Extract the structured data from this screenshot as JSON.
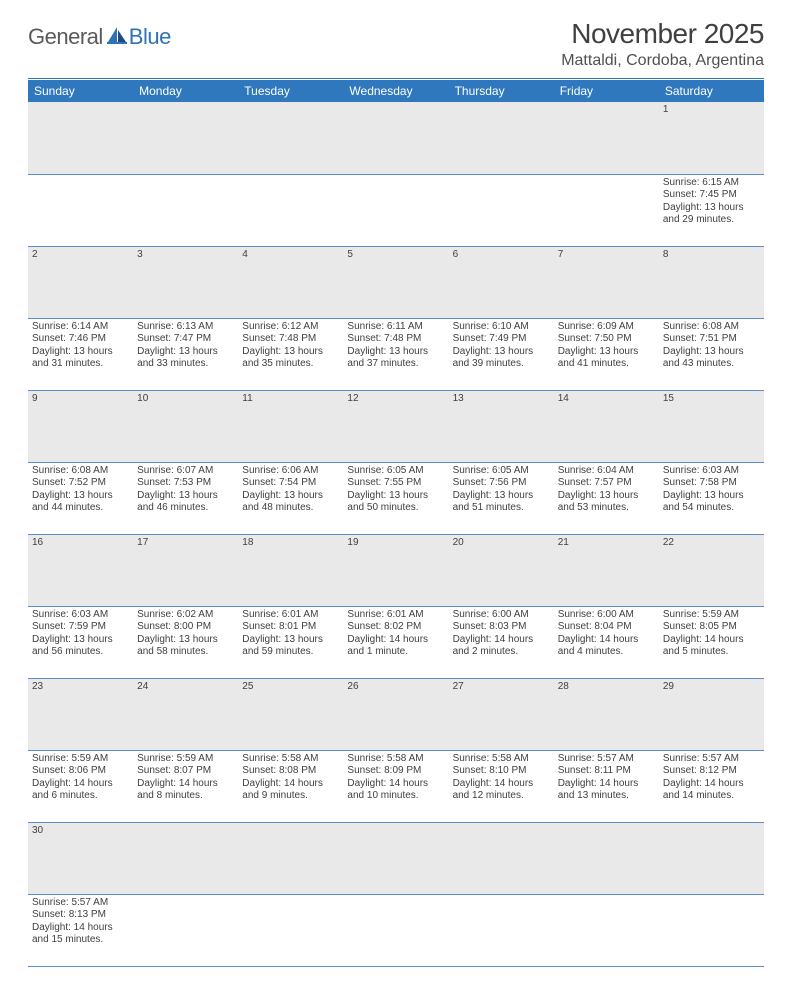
{
  "logo": {
    "part1": "General",
    "part2": "Blue"
  },
  "title": "November 2025",
  "location": "Mattaldi, Cordoba, Argentina",
  "colors": {
    "header_bg": "#2f78bd",
    "rule": "#2f78bd",
    "daynum_bg": "#e9e9e9",
    "cell_border": "#5a8fc6",
    "text": "#404040"
  },
  "weekdays": [
    "Sunday",
    "Monday",
    "Tuesday",
    "Wednesday",
    "Thursday",
    "Friday",
    "Saturday"
  ],
  "weeks": [
    [
      null,
      null,
      null,
      null,
      null,
      null,
      {
        "n": "1",
        "rise": "Sunrise: 6:15 AM",
        "set": "Sunset: 7:45 PM",
        "dl1": "Daylight: 13 hours",
        "dl2": "and 29 minutes."
      }
    ],
    [
      {
        "n": "2",
        "rise": "Sunrise: 6:14 AM",
        "set": "Sunset: 7:46 PM",
        "dl1": "Daylight: 13 hours",
        "dl2": "and 31 minutes."
      },
      {
        "n": "3",
        "rise": "Sunrise: 6:13 AM",
        "set": "Sunset: 7:47 PM",
        "dl1": "Daylight: 13 hours",
        "dl2": "and 33 minutes."
      },
      {
        "n": "4",
        "rise": "Sunrise: 6:12 AM",
        "set": "Sunset: 7:48 PM",
        "dl1": "Daylight: 13 hours",
        "dl2": "and 35 minutes."
      },
      {
        "n": "5",
        "rise": "Sunrise: 6:11 AM",
        "set": "Sunset: 7:48 PM",
        "dl1": "Daylight: 13 hours",
        "dl2": "and 37 minutes."
      },
      {
        "n": "6",
        "rise": "Sunrise: 6:10 AM",
        "set": "Sunset: 7:49 PM",
        "dl1": "Daylight: 13 hours",
        "dl2": "and 39 minutes."
      },
      {
        "n": "7",
        "rise": "Sunrise: 6:09 AM",
        "set": "Sunset: 7:50 PM",
        "dl1": "Daylight: 13 hours",
        "dl2": "and 41 minutes."
      },
      {
        "n": "8",
        "rise": "Sunrise: 6:08 AM",
        "set": "Sunset: 7:51 PM",
        "dl1": "Daylight: 13 hours",
        "dl2": "and 43 minutes."
      }
    ],
    [
      {
        "n": "9",
        "rise": "Sunrise: 6:08 AM",
        "set": "Sunset: 7:52 PM",
        "dl1": "Daylight: 13 hours",
        "dl2": "and 44 minutes."
      },
      {
        "n": "10",
        "rise": "Sunrise: 6:07 AM",
        "set": "Sunset: 7:53 PM",
        "dl1": "Daylight: 13 hours",
        "dl2": "and 46 minutes."
      },
      {
        "n": "11",
        "rise": "Sunrise: 6:06 AM",
        "set": "Sunset: 7:54 PM",
        "dl1": "Daylight: 13 hours",
        "dl2": "and 48 minutes."
      },
      {
        "n": "12",
        "rise": "Sunrise: 6:05 AM",
        "set": "Sunset: 7:55 PM",
        "dl1": "Daylight: 13 hours",
        "dl2": "and 50 minutes."
      },
      {
        "n": "13",
        "rise": "Sunrise: 6:05 AM",
        "set": "Sunset: 7:56 PM",
        "dl1": "Daylight: 13 hours",
        "dl2": "and 51 minutes."
      },
      {
        "n": "14",
        "rise": "Sunrise: 6:04 AM",
        "set": "Sunset: 7:57 PM",
        "dl1": "Daylight: 13 hours",
        "dl2": "and 53 minutes."
      },
      {
        "n": "15",
        "rise": "Sunrise: 6:03 AM",
        "set": "Sunset: 7:58 PM",
        "dl1": "Daylight: 13 hours",
        "dl2": "and 54 minutes."
      }
    ],
    [
      {
        "n": "16",
        "rise": "Sunrise: 6:03 AM",
        "set": "Sunset: 7:59 PM",
        "dl1": "Daylight: 13 hours",
        "dl2": "and 56 minutes."
      },
      {
        "n": "17",
        "rise": "Sunrise: 6:02 AM",
        "set": "Sunset: 8:00 PM",
        "dl1": "Daylight: 13 hours",
        "dl2": "and 58 minutes."
      },
      {
        "n": "18",
        "rise": "Sunrise: 6:01 AM",
        "set": "Sunset: 8:01 PM",
        "dl1": "Daylight: 13 hours",
        "dl2": "and 59 minutes."
      },
      {
        "n": "19",
        "rise": "Sunrise: 6:01 AM",
        "set": "Sunset: 8:02 PM",
        "dl1": "Daylight: 14 hours",
        "dl2": "and 1 minute."
      },
      {
        "n": "20",
        "rise": "Sunrise: 6:00 AM",
        "set": "Sunset: 8:03 PM",
        "dl1": "Daylight: 14 hours",
        "dl2": "and 2 minutes."
      },
      {
        "n": "21",
        "rise": "Sunrise: 6:00 AM",
        "set": "Sunset: 8:04 PM",
        "dl1": "Daylight: 14 hours",
        "dl2": "and 4 minutes."
      },
      {
        "n": "22",
        "rise": "Sunrise: 5:59 AM",
        "set": "Sunset: 8:05 PM",
        "dl1": "Daylight: 14 hours",
        "dl2": "and 5 minutes."
      }
    ],
    [
      {
        "n": "23",
        "rise": "Sunrise: 5:59 AM",
        "set": "Sunset: 8:06 PM",
        "dl1": "Daylight: 14 hours",
        "dl2": "and 6 minutes."
      },
      {
        "n": "24",
        "rise": "Sunrise: 5:59 AM",
        "set": "Sunset: 8:07 PM",
        "dl1": "Daylight: 14 hours",
        "dl2": "and 8 minutes."
      },
      {
        "n": "25",
        "rise": "Sunrise: 5:58 AM",
        "set": "Sunset: 8:08 PM",
        "dl1": "Daylight: 14 hours",
        "dl2": "and 9 minutes."
      },
      {
        "n": "26",
        "rise": "Sunrise: 5:58 AM",
        "set": "Sunset: 8:09 PM",
        "dl1": "Daylight: 14 hours",
        "dl2": "and 10 minutes."
      },
      {
        "n": "27",
        "rise": "Sunrise: 5:58 AM",
        "set": "Sunset: 8:10 PM",
        "dl1": "Daylight: 14 hours",
        "dl2": "and 12 minutes."
      },
      {
        "n": "28",
        "rise": "Sunrise: 5:57 AM",
        "set": "Sunset: 8:11 PM",
        "dl1": "Daylight: 14 hours",
        "dl2": "and 13 minutes."
      },
      {
        "n": "29",
        "rise": "Sunrise: 5:57 AM",
        "set": "Sunset: 8:12 PM",
        "dl1": "Daylight: 14 hours",
        "dl2": "and 14 minutes."
      }
    ],
    [
      {
        "n": "30",
        "rise": "Sunrise: 5:57 AM",
        "set": "Sunset: 8:13 PM",
        "dl1": "Daylight: 14 hours",
        "dl2": "and 15 minutes."
      },
      null,
      null,
      null,
      null,
      null,
      null
    ]
  ]
}
